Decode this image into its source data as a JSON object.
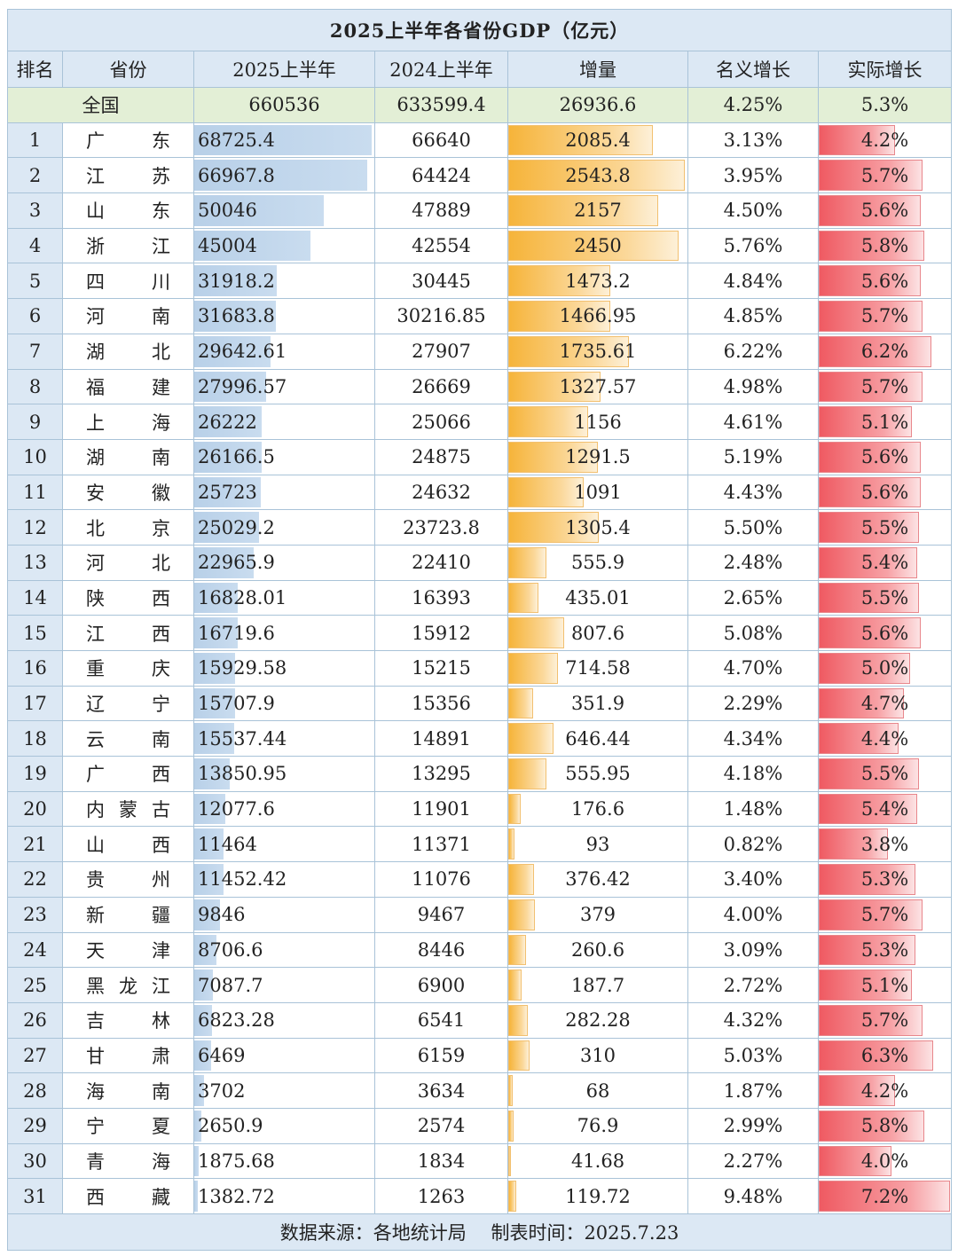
{
  "title": "2025上半年各省份GDP（亿元）",
  "headers": [
    "排名",
    "省份",
    "2025上半年",
    "2024上半年",
    "增量",
    "名义增长",
    "实际增长"
  ],
  "national": {
    "name": "全国",
    "gdp2025": "660536",
    "gdp2024": "633599.4",
    "increase": "26936.6",
    "nominal": "4.25%",
    "real": "5.3%"
  },
  "rows": [
    [
      "1",
      "广东",
      "68725.4",
      "66640",
      "2085.4",
      "3.13%",
      "4.2%"
    ],
    [
      "2",
      "江苏",
      "66967.8",
      "64424",
      "2543.8",
      "3.95%",
      "5.7%"
    ],
    [
      "3",
      "山东",
      "50046",
      "47889",
      "2157",
      "4.50%",
      "5.6%"
    ],
    [
      "4",
      "浙江",
      "45004",
      "42554",
      "2450",
      "5.76%",
      "5.8%"
    ],
    [
      "5",
      "四川",
      "31918.2",
      "30445",
      "1473.2",
      "4.84%",
      "5.6%"
    ],
    [
      "6",
      "河南",
      "31683.8",
      "30216.85",
      "1466.95",
      "4.85%",
      "5.7%"
    ],
    [
      "7",
      "湖北",
      "29642.61",
      "27907",
      "1735.61",
      "6.22%",
      "6.2%"
    ],
    [
      "8",
      "福建",
      "27996.57",
      "26669",
      "1327.57",
      "4.98%",
      "5.7%"
    ],
    [
      "9",
      "上海",
      "26222",
      "25066",
      "1156",
      "4.61%",
      "5.1%"
    ],
    [
      "10",
      "湖南",
      "26166.5",
      "24875",
      "1291.5",
      "5.19%",
      "5.6%"
    ],
    [
      "11",
      "安徽",
      "25723",
      "24632",
      "1091",
      "4.43%",
      "5.6%"
    ],
    [
      "12",
      "北京",
      "25029.2",
      "23723.8",
      "1305.4",
      "5.50%",
      "5.5%"
    ],
    [
      "13",
      "河北",
      "22965.9",
      "22410",
      "555.9",
      "2.48%",
      "5.4%"
    ],
    [
      "14",
      "陕西",
      "16828.01",
      "16393",
      "435.01",
      "2.65%",
      "5.5%"
    ],
    [
      "15",
      "江西",
      "16719.6",
      "15912",
      "807.6",
      "5.08%",
      "5.6%"
    ],
    [
      "16",
      "重庆",
      "15929.58",
      "15215",
      "714.58",
      "4.70%",
      "5.0%"
    ],
    [
      "17",
      "辽宁",
      "15707.9",
      "15356",
      "351.9",
      "2.29%",
      "4.7%"
    ],
    [
      "18",
      "云南",
      "15537.44",
      "14891",
      "646.44",
      "4.34%",
      "4.4%"
    ],
    [
      "19",
      "广西",
      "13850.95",
      "13295",
      "555.95",
      "4.18%",
      "5.5%"
    ],
    [
      "20",
      "内蒙古",
      "12077.6",
      "11901",
      "176.6",
      "1.48%",
      "5.4%"
    ],
    [
      "21",
      "山西",
      "11464",
      "11371",
      "93",
      "0.82%",
      "3.8%"
    ],
    [
      "22",
      "贵州",
      "11452.42",
      "11076",
      "376.42",
      "3.40%",
      "5.3%"
    ],
    [
      "23",
      "新疆",
      "9846",
      "9467",
      "379",
      "4.00%",
      "5.7%"
    ],
    [
      "24",
      "天津",
      "8706.6",
      "8446",
      "260.6",
      "3.09%",
      "5.3%"
    ],
    [
      "25",
      "黑龙江",
      "7087.7",
      "6900",
      "187.7",
      "2.72%",
      "5.1%"
    ],
    [
      "26",
      "吉林",
      "6823.28",
      "6541",
      "282.28",
      "4.32%",
      "5.7%"
    ],
    [
      "27",
      "甘肃",
      "6469",
      "6159",
      "310",
      "5.03%",
      "6.3%"
    ],
    [
      "28",
      "海南",
      "3702",
      "3634",
      "68",
      "1.87%",
      "4.2%"
    ],
    [
      "29",
      "宁夏",
      "2650.9",
      "2574",
      "76.9",
      "2.99%",
      "5.8%"
    ],
    [
      "30",
      "青海",
      "1875.68",
      "1834",
      "41.68",
      "2.27%",
      "4.0%"
    ],
    [
      "31",
      "西藏",
      "1382.72",
      "1263",
      "119.72",
      "9.48%",
      "7.2%"
    ]
  ],
  "footer": "数据来源：各地统计局　 制表时间：2025.7.23",
  "colors": {
    "header_bg": "#dce8f4",
    "national_bg": "#e3efd6",
    "gdp_bar": "#b8d0e8",
    "increase_bar": "#f6b43a",
    "real_bar": "#ef5a62"
  }
}
